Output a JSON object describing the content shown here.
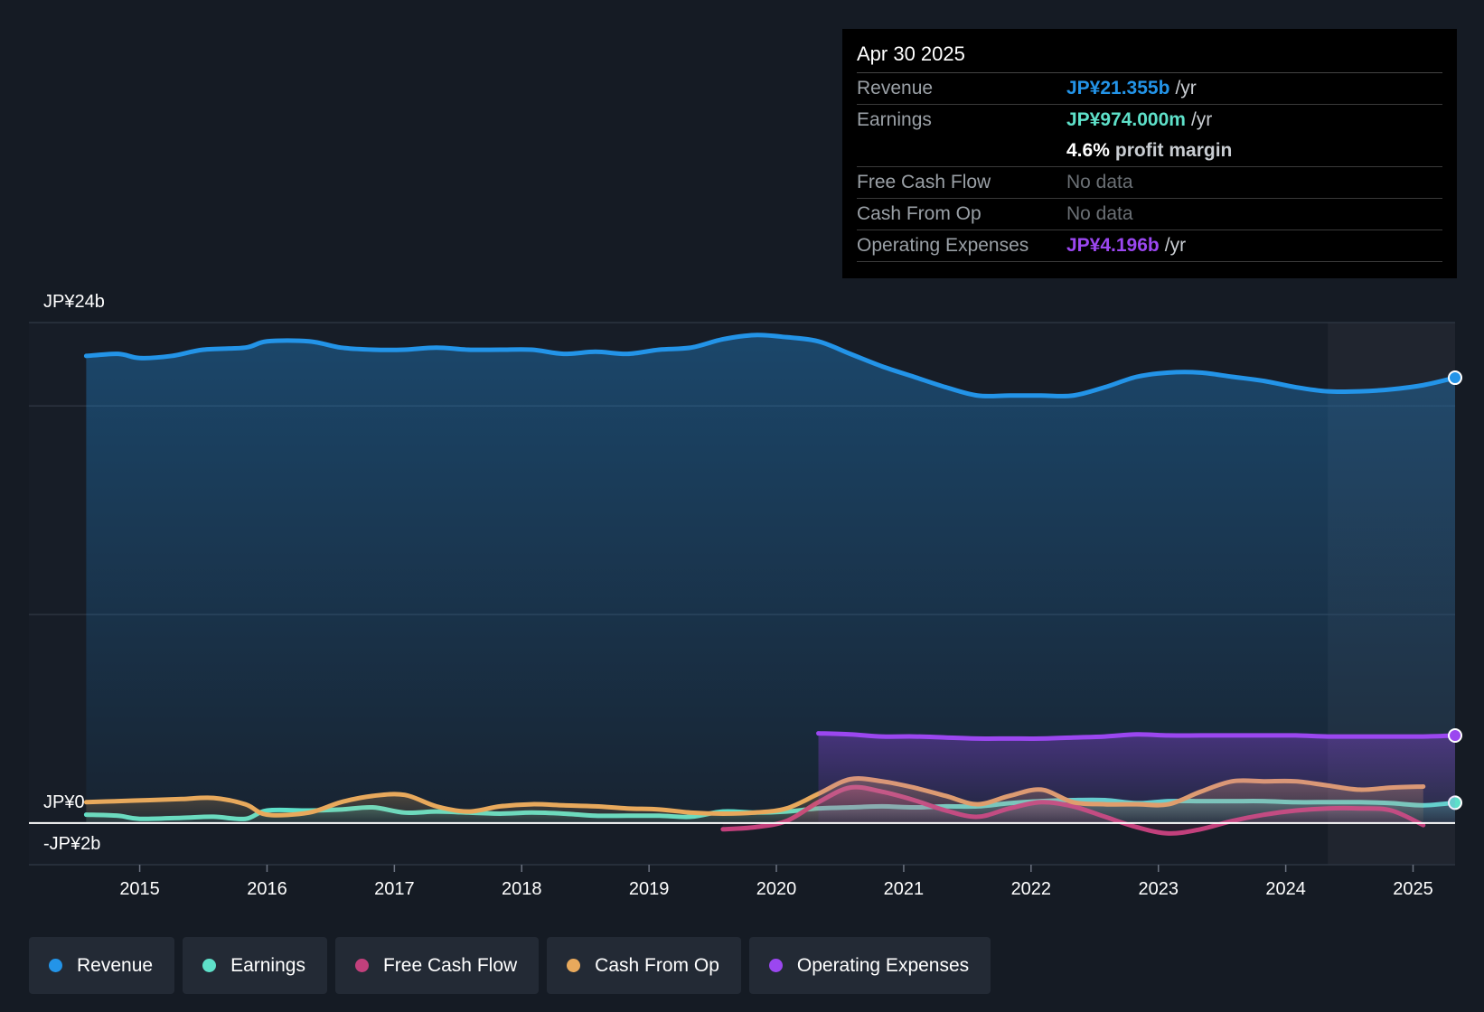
{
  "chart_data": {
    "type": "line",
    "y_axis_labels": {
      "top": "JP¥24b",
      "zero": "JP¥0",
      "bottom": "-JP¥2b"
    },
    "ylim": [
      -2,
      24
    ],
    "xlim": [
      2014.13,
      2025.33
    ],
    "x_tick_labels": [
      "2015",
      "2016",
      "2017",
      "2018",
      "2019",
      "2020",
      "2021",
      "2022",
      "2023",
      "2024",
      "2025"
    ],
    "grid": true,
    "forecast_shade_start": 2024.33,
    "series": [
      {
        "name": "Revenue",
        "color": "#2394e8",
        "area": true,
        "x": [
          2014.58,
          2014.83,
          2015.0,
          2015.25,
          2015.5,
          2015.83,
          2016.0,
          2016.33,
          2016.58,
          2016.83,
          2017.08,
          2017.33,
          2017.58,
          2017.83,
          2018.08,
          2018.33,
          2018.58,
          2018.83,
          2019.08,
          2019.33,
          2019.58,
          2019.83,
          2020.08,
          2020.33,
          2020.58,
          2020.83,
          2021.08,
          2021.33,
          2021.58,
          2021.83,
          2022.08,
          2022.33,
          2022.58,
          2022.83,
          2023.08,
          2023.33,
          2023.58,
          2023.83,
          2024.08,
          2024.33,
          2024.58,
          2024.83,
          2025.08,
          2025.33
        ],
        "y": [
          22.4,
          22.5,
          22.3,
          22.4,
          22.7,
          22.8,
          23.1,
          23.1,
          22.8,
          22.7,
          22.7,
          22.8,
          22.7,
          22.7,
          22.7,
          22.5,
          22.6,
          22.5,
          22.7,
          22.8,
          23.2,
          23.4,
          23.3,
          23.1,
          22.5,
          21.9,
          21.4,
          20.9,
          20.5,
          20.5,
          20.5,
          20.5,
          20.9,
          21.4,
          21.6,
          21.6,
          21.4,
          21.2,
          20.9,
          20.7,
          20.7,
          20.8,
          21.0,
          21.355
        ]
      },
      {
        "name": "Earnings",
        "color": "#5ee0c9",
        "area": true,
        "x": [
          2014.58,
          2014.83,
          2015.0,
          2015.33,
          2015.58,
          2015.83,
          2016.0,
          2016.33,
          2016.58,
          2016.83,
          2017.08,
          2017.33,
          2017.58,
          2017.83,
          2018.08,
          2018.33,
          2018.58,
          2018.83,
          2019.08,
          2019.33,
          2019.58,
          2019.83,
          2020.08,
          2020.33,
          2020.58,
          2020.83,
          2021.08,
          2021.33,
          2021.58,
          2021.83,
          2022.08,
          2022.33,
          2022.58,
          2022.83,
          2023.08,
          2023.33,
          2023.58,
          2023.83,
          2024.08,
          2024.33,
          2024.58,
          2024.83,
          2025.08,
          2025.33
        ],
        "y": [
          0.4,
          0.35,
          0.2,
          0.25,
          0.3,
          0.2,
          0.6,
          0.6,
          0.65,
          0.75,
          0.5,
          0.55,
          0.5,
          0.45,
          0.5,
          0.45,
          0.35,
          0.35,
          0.35,
          0.3,
          0.55,
          0.5,
          0.55,
          0.7,
          0.75,
          0.8,
          0.75,
          0.8,
          0.8,
          0.95,
          1.05,
          1.1,
          1.1,
          0.95,
          1.05,
          1.05,
          1.05,
          1.05,
          1.0,
          1.0,
          1.0,
          0.95,
          0.85,
          0.974
        ]
      },
      {
        "name": "Free Cash Flow",
        "color": "#c2407c",
        "area": true,
        "x": [
          2019.58,
          2019.83,
          2020.08,
          2020.33,
          2020.58,
          2020.83,
          2021.08,
          2021.33,
          2021.58,
          2021.83,
          2022.08,
          2022.33,
          2022.58,
          2022.83,
          2023.08,
          2023.33,
          2023.58,
          2023.83,
          2024.08,
          2024.33,
          2024.58,
          2024.83,
          2025.08
        ],
        "y": [
          -0.3,
          -0.2,
          0.1,
          1.0,
          1.7,
          1.5,
          1.1,
          0.6,
          0.3,
          0.7,
          1.0,
          0.8,
          0.3,
          -0.2,
          -0.5,
          -0.3,
          0.1,
          0.4,
          0.6,
          0.7,
          0.7,
          0.6,
          -0.1
        ]
      },
      {
        "name": "Cash From Op",
        "color": "#e8a95c",
        "area": true,
        "x": [
          2014.58,
          2014.83,
          2015.08,
          2015.33,
          2015.58,
          2015.83,
          2016.0,
          2016.33,
          2016.58,
          2016.83,
          2017.08,
          2017.33,
          2017.58,
          2017.83,
          2018.08,
          2018.33,
          2018.58,
          2018.83,
          2019.08,
          2019.33,
          2019.58,
          2019.83,
          2020.08,
          2020.33,
          2020.58,
          2020.83,
          2021.08,
          2021.33,
          2021.58,
          2021.83,
          2022.08,
          2022.33,
          2022.58,
          2022.83,
          2023.08,
          2023.33,
          2023.58,
          2023.83,
          2024.08,
          2024.33,
          2024.58,
          2024.83,
          2025.08
        ],
        "y": [
          1.0,
          1.05,
          1.1,
          1.15,
          1.2,
          0.9,
          0.4,
          0.5,
          1.0,
          1.3,
          1.35,
          0.8,
          0.55,
          0.8,
          0.9,
          0.85,
          0.8,
          0.7,
          0.65,
          0.5,
          0.45,
          0.5,
          0.7,
          1.4,
          2.1,
          2.0,
          1.7,
          1.3,
          0.9,
          1.3,
          1.6,
          1.0,
          0.9,
          0.9,
          0.9,
          1.5,
          2.0,
          2.0,
          2.0,
          1.8,
          1.6,
          1.7,
          1.75
        ]
      },
      {
        "name": "Operating Expenses",
        "color": "#9b47f0",
        "area": true,
        "x": [
          2020.33,
          2020.58,
          2020.83,
          2021.08,
          2021.33,
          2021.58,
          2021.83,
          2022.08,
          2022.33,
          2022.58,
          2022.83,
          2023.08,
          2023.33,
          2023.58,
          2023.83,
          2024.08,
          2024.33,
          2024.58,
          2024.83,
          2025.08,
          2025.33
        ],
        "y": [
          4.3,
          4.25,
          4.15,
          4.15,
          4.1,
          4.05,
          4.05,
          4.05,
          4.1,
          4.15,
          4.25,
          4.2,
          4.2,
          4.2,
          4.2,
          4.2,
          4.15,
          4.15,
          4.15,
          4.15,
          4.196
        ]
      }
    ]
  },
  "tooltip": {
    "date": "Apr 30 2025",
    "rows": {
      "revenue": {
        "label": "Revenue",
        "value": "JP¥21.355b",
        "unit": "/yr",
        "color": "#2394e8"
      },
      "earnings": {
        "label": "Earnings",
        "value": "JP¥974.000m",
        "unit": "/yr",
        "color": "#5ee0c9"
      },
      "margin": {
        "value": "4.6%",
        "unit": "profit margin"
      },
      "fcf": {
        "label": "Free Cash Flow",
        "value": "No data"
      },
      "cfo": {
        "label": "Cash From Op",
        "value": "No data"
      },
      "opex": {
        "label": "Operating Expenses",
        "value": "JP¥4.196b",
        "unit": "/yr",
        "color": "#9b47f0"
      }
    }
  },
  "legend": [
    {
      "label": "Revenue",
      "color": "#2394e8"
    },
    {
      "label": "Earnings",
      "color": "#5ee0c9"
    },
    {
      "label": "Free Cash Flow",
      "color": "#c2407c"
    },
    {
      "label": "Cash From Op",
      "color": "#e8a95c"
    },
    {
      "label": "Operating Expenses",
      "color": "#9b47f0"
    }
  ]
}
